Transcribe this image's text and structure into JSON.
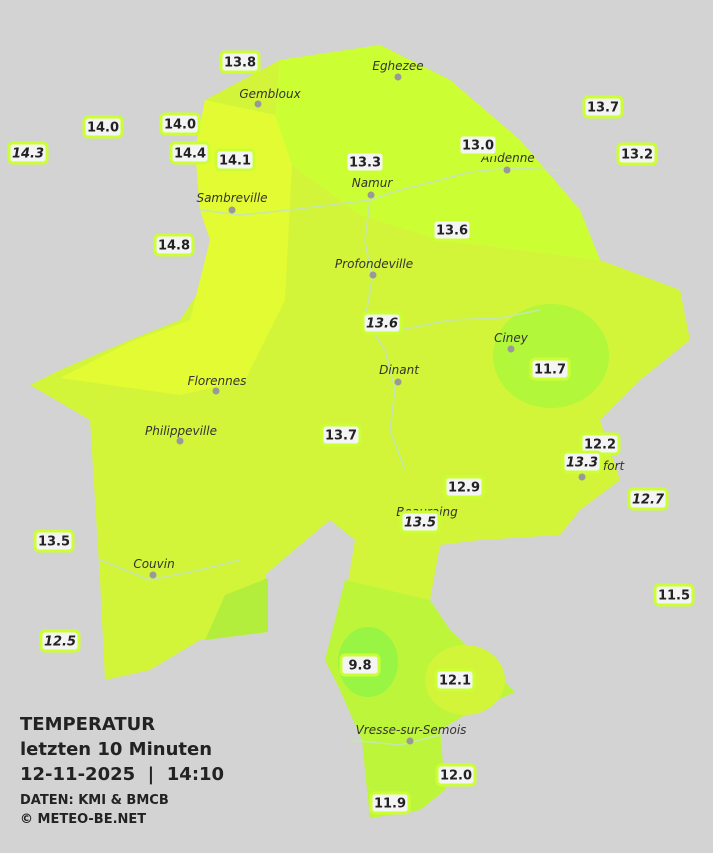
{
  "title": {
    "line1": "TEMPERATUR",
    "line2": "letzten 10 Minuten",
    "line3": "12-11-2025  |  14:10",
    "source": "DATEN: KMI & BMCB",
    "copyright": "© METEO-BE.NET"
  },
  "towns": [
    "Eghezee",
    "Gembloux",
    "Andenne",
    "Namur",
    "Sambreville",
    "Profondeville",
    "Ciney",
    "Dinant",
    "Florennes",
    "Philippeville",
    "Rochefort",
    "Beauraing",
    "Couvin",
    "Vresse-sur-Semois"
  ],
  "stations": [
    {
      "value": "13.8",
      "italic": false
    },
    {
      "value": "13.7",
      "italic": false
    },
    {
      "value": "14.0",
      "italic": false
    },
    {
      "value": "14.0",
      "italic": false
    },
    {
      "value": "13.0",
      "italic": false
    },
    {
      "value": "14.3",
      "italic": true
    },
    {
      "value": "14.4",
      "italic": false
    },
    {
      "value": "14.1",
      "italic": false
    },
    {
      "value": "13.3",
      "italic": false
    },
    {
      "value": "13.2",
      "italic": false
    },
    {
      "value": "13.6",
      "italic": false
    },
    {
      "value": "14.8",
      "italic": false
    },
    {
      "value": "13.6",
      "italic": true
    },
    {
      "value": "11.7",
      "italic": false
    },
    {
      "value": "13.7",
      "italic": false
    },
    {
      "value": "12.2",
      "italic": false
    },
    {
      "value": "13.3",
      "italic": true
    },
    {
      "value": "12.7",
      "italic": true
    },
    {
      "value": "12.9",
      "italic": false
    },
    {
      "value": "13.5",
      "italic": true
    },
    {
      "value": "13.5",
      "italic": false
    },
    {
      "value": "11.5",
      "italic": false
    },
    {
      "value": "12.5",
      "italic": true
    },
    {
      "value": "9.8",
      "italic": false
    },
    {
      "value": "12.1",
      "italic": false
    },
    {
      "value": "12.0",
      "italic": false
    },
    {
      "value": "11.9",
      "italic": false
    }
  ]
}
